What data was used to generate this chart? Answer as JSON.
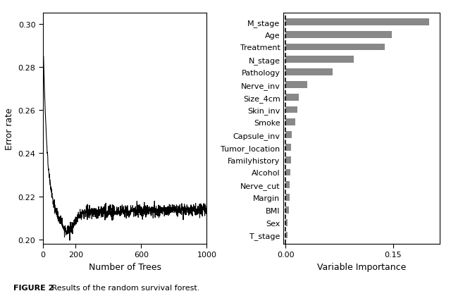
{
  "left_plot": {
    "xlabel": "Number of Trees",
    "ylabel": "Error rate",
    "xlim": [
      0,
      1000
    ],
    "ylim": [
      0.198,
      0.305
    ],
    "yticks": [
      0.2,
      0.22,
      0.24,
      0.26,
      0.28,
      0.3
    ],
    "xticks": [
      0,
      200,
      600,
      1000
    ],
    "line_color": "black",
    "line_width": 0.8
  },
  "right_plot": {
    "xlabel": "Variable Importance",
    "xticks": [
      0.0,
      0.15
    ],
    "xlim": [
      -0.003,
      0.215
    ],
    "bar_color": "#888888",
    "dashed_line_color": "black",
    "variables": [
      "M_stage",
      "Age",
      "Treatment",
      "N_stage",
      "Pathology",
      "Nerve_inv",
      "Size_4cm",
      "Skin_inv",
      "Smoke",
      "Capsule_inv",
      "Tumor_location",
      "Familyhistory",
      "Alcohol",
      "Nerve_cut",
      "Margin",
      "BMI",
      "Sex",
      "T_stage"
    ],
    "importance": [
      0.2,
      0.148,
      0.138,
      0.095,
      0.065,
      0.03,
      0.018,
      0.016,
      0.013,
      0.008,
      0.007,
      0.007,
      0.006,
      0.005,
      0.005,
      0.004,
      0.002,
      0.002
    ]
  },
  "caption_bold": "FIGURE 2",
  "caption_normal": "   Results of the random survival forest.",
  "background_color": "#ffffff"
}
